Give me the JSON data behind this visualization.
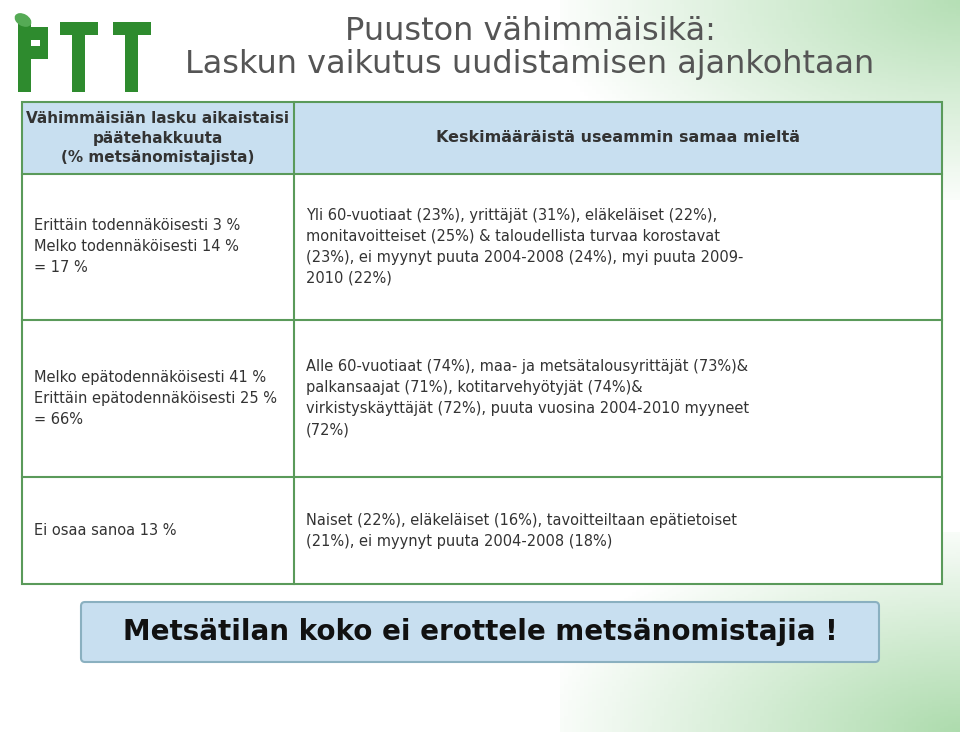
{
  "title_line1": "Puuston vähimmäisikä:",
  "title_line2": "Laskun vaikutus uudistamisen ajankohtaan",
  "title_color": "#555555",
  "title_fontsize": 23,
  "table_header_left": "Vähimmäisiän lasku aikaistaisi\npäätehakkuuta\n(% metsänomistajista)",
  "table_header_right": "Keskimääräistä useammin samaa mieltä",
  "header_bg_color": "#c8dff0",
  "header_fontsize": 11,
  "rows": [
    {
      "left": "Erittäin todennäköisesti 3 %\nMelko todennäköisesti 14 %\n= 17 %",
      "right": "Yli 60-vuotiaat (23%), yrittäjät (31%), eläkeläiset (22%),\nmonitavoitteiset (25%) & taloudellista turvaa korostavat\n(23%), ei myynyt puuta 2004-2008 (24%), myi puuta 2009-\n2010 (22%)"
    },
    {
      "left": "Melko epätodennäköisesti 41 %\nErittäin epätodennäköisesti 25 %\n= 66%",
      "right": "Alle 60-vuotiaat (74%), maa- ja metsätalousyrittäjät (73%)&\npalkansaajat (71%), kotitarvehyötyjät (74%)&\nvirkistyskäyttäjät (72%), puuta vuosina 2004-2010 myyneet\n(72%)"
    },
    {
      "left": "Ei osaa sanoa 13 %",
      "right": "Naiset (22%), eläkeläiset (16%), tavoitteiltaan epätietoiset\n(21%), ei myynyt puuta 2004-2008 (18%)"
    }
  ],
  "row_fontsize": 10.5,
  "table_border_color": "#5a9a5a",
  "footer_text": "Metsätilan koko ei erottele metsänomistajia !",
  "footer_fontsize": 20,
  "footer_bg_color": "#c8dff0",
  "footer_border_color": "#8ab0c0",
  "logo_green": "#2e8b2e",
  "logo_dark_green": "#1a6b1a",
  "slide_bg_color": "#f5faf5",
  "gradient_green": "#5ab05a",
  "text_color": "#333333"
}
